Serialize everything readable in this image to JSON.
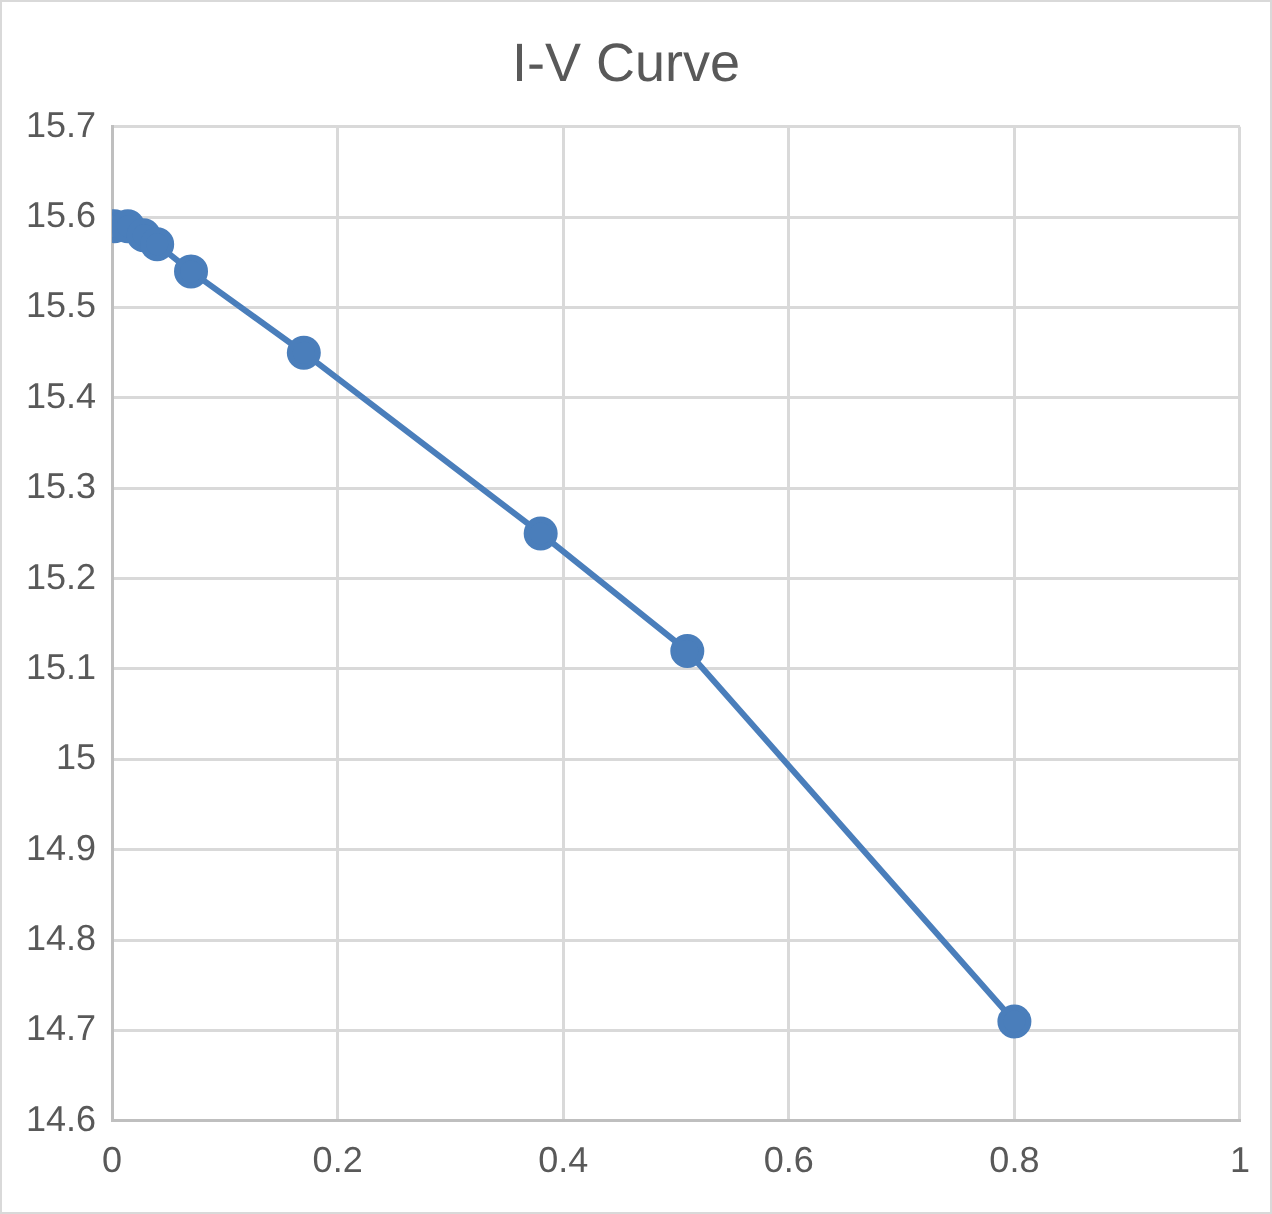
{
  "chart_data": {
    "type": "line",
    "title": "I-V Curve",
    "x": [
      0.002,
      0.014,
      0.028,
      0.04,
      0.07,
      0.17,
      0.38,
      0.51,
      0.8
    ],
    "series": [
      {
        "color": "#4a7ebb",
        "values": [
          15.59,
          15.59,
          15.58,
          15.57,
          15.54,
          15.45,
          15.25,
          15.12,
          14.71
        ]
      }
    ],
    "xlim": [
      0,
      1
    ],
    "xticks": [
      0,
      0.2,
      0.4,
      0.6,
      0.8,
      1
    ],
    "ylim": [
      14.6,
      15.7
    ],
    "yticks": [
      14.6,
      14.7,
      14.8,
      14.9,
      15,
      15.1,
      15.2,
      15.3,
      15.4,
      15.5,
      15.6,
      15.7
    ],
    "grid": true,
    "legend": false,
    "marker": "circle",
    "line_style": "solid"
  }
}
